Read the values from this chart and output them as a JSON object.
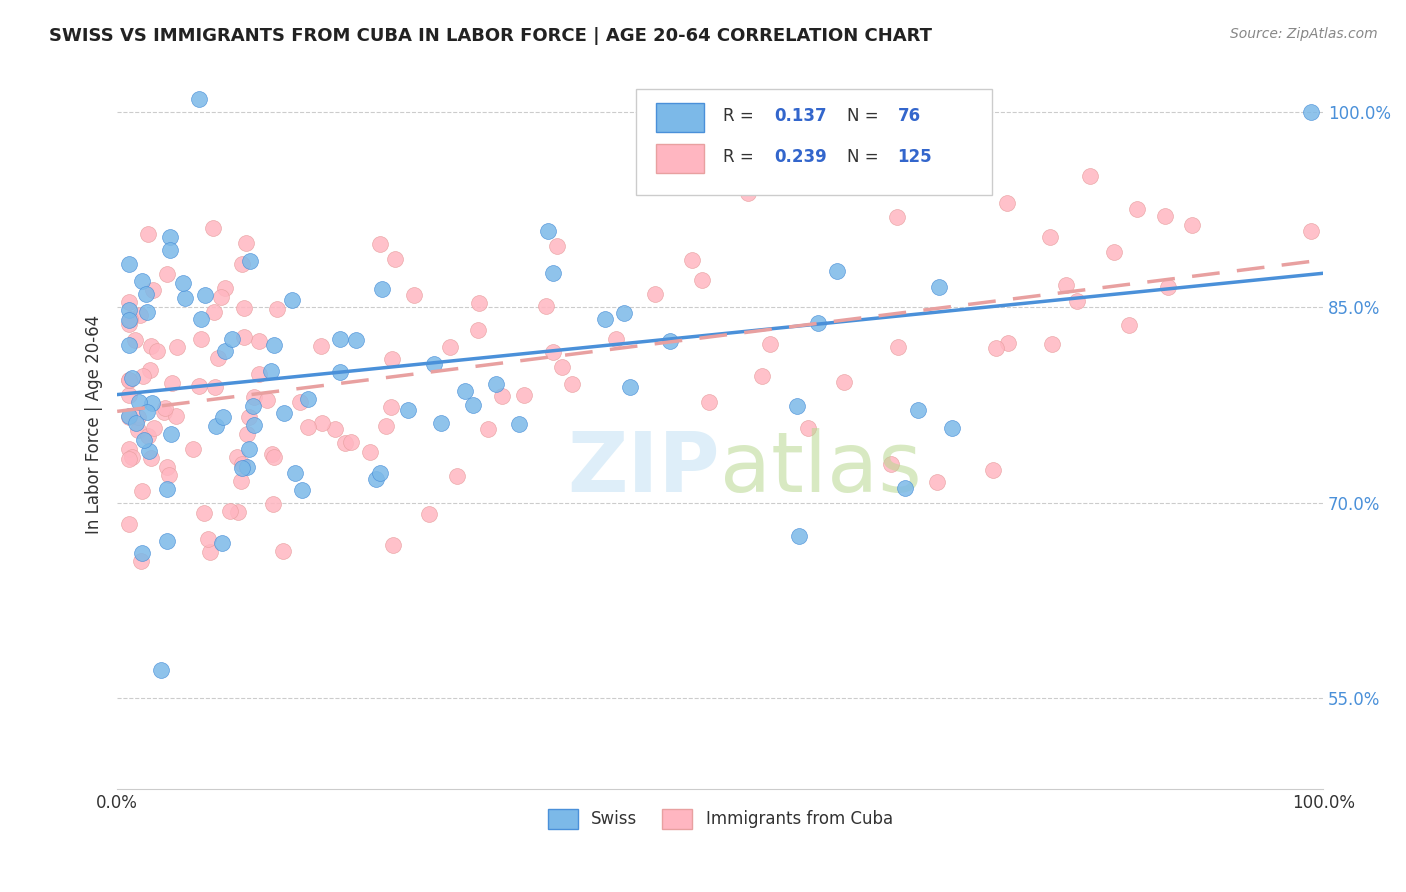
{
  "title": "SWISS VS IMMIGRANTS FROM CUBA IN LABOR FORCE | AGE 20-64 CORRELATION CHART",
  "source_text": "Source: ZipAtlas.com",
  "ylabel": "In Labor Force | Age 20-64",
  "xlim": [
    0.0,
    1.0
  ],
  "ylim": [
    0.48,
    1.04
  ],
  "y_tick_labels_right": [
    "55.0%",
    "70.0%",
    "85.0%",
    "100.0%"
  ],
  "y_tick_values_right": [
    0.55,
    0.7,
    0.85,
    1.0
  ],
  "legend_r1": "0.137",
  "legend_n1": "76",
  "legend_r2": "0.239",
  "legend_n2": "125",
  "legend_label1": "Swiss",
  "legend_label2": "Immigrants from Cuba",
  "color_swiss": "#7cb9e8",
  "color_cuba": "#ffb6c1",
  "color_swiss_line": "#4a90d9",
  "color_cuba_line": "#e8a0a0",
  "background_color": "#ffffff"
}
